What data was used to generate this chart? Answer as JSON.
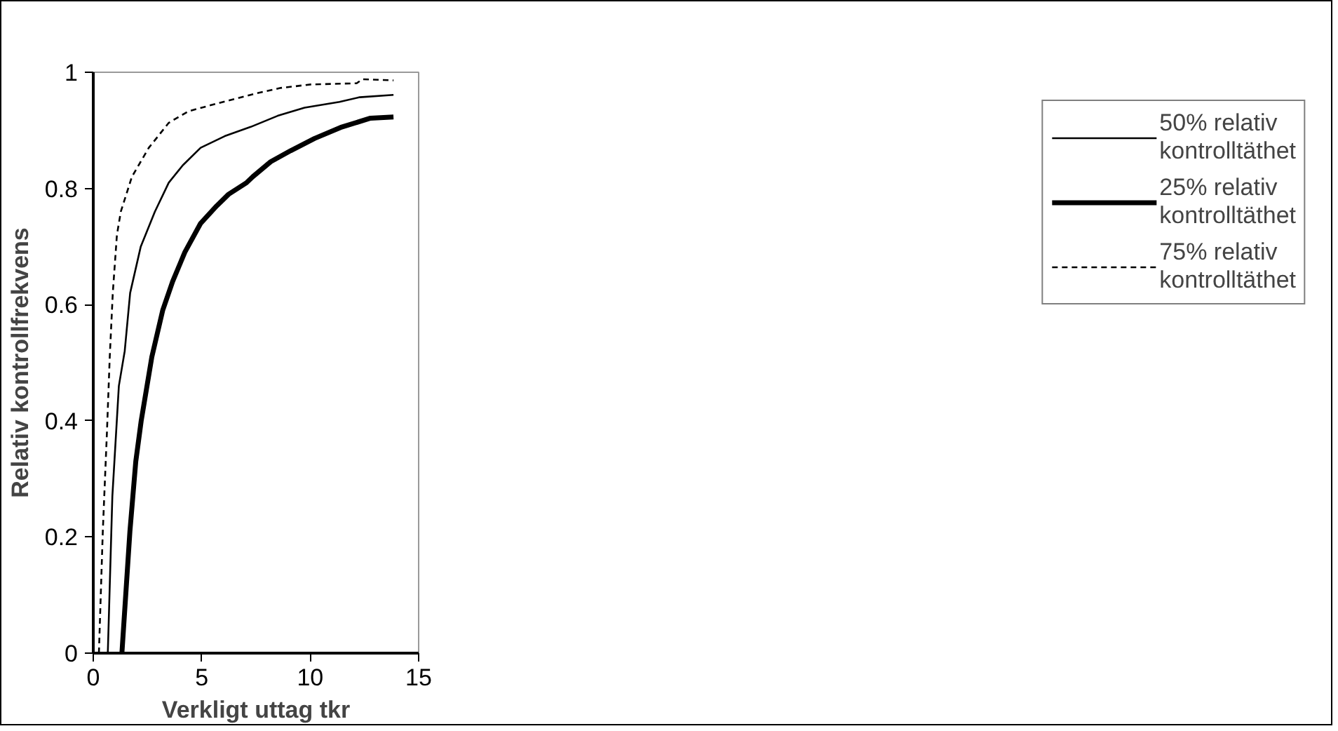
{
  "chart_data": {
    "type": "line",
    "xlabel": "Verkligt uttag tkr",
    "ylabel": "Relativ kontrollfrekvens",
    "xlim": [
      0,
      15
    ],
    "xticks": [
      0,
      5,
      10,
      15
    ],
    "ylim": [
      0,
      1
    ],
    "yticks": [
      0,
      0.2,
      0.4,
      0.6,
      0.8,
      1
    ],
    "grid": false,
    "legend": "right",
    "marker": "none",
    "series": [
      {
        "name": "50% relativ kontrolltäthet",
        "color": "#000000",
        "line_style": "solid",
        "x": [
          0.67,
          0.88,
          1.18,
          1.45,
          1.7,
          2.19,
          2.84,
          3.48,
          4.13,
          4.95,
          6.06,
          7.26,
          8.5,
          9.74,
          11.35,
          12.28,
          13.84
        ],
        "values": [
          0,
          0.27,
          0.46,
          0.52,
          0.62,
          0.7,
          0.76,
          0.81,
          0.84,
          0.87,
          0.89,
          0.906,
          0.925,
          0.939,
          0.949,
          0.957,
          0.961
        ]
      },
      {
        "name": "25% relativ kontrolltäthet",
        "color": "#000000",
        "line_style": "solid",
        "x": [
          1.32,
          1.69,
          1.96,
          2.21,
          2.7,
          3.2,
          3.66,
          4.22,
          4.95,
          5.69,
          6.24,
          7.07,
          7.35,
          8.18,
          9.1,
          10.2,
          11.4,
          12.78,
          13.84
        ],
        "values": [
          0,
          0.21,
          0.33,
          0.4,
          0.51,
          0.59,
          0.64,
          0.69,
          0.74,
          0.77,
          0.79,
          0.81,
          0.82,
          0.846,
          0.865,
          0.886,
          0.905,
          0.921,
          0.923
        ]
      },
      {
        "name": "75% relativ kontrolltäthet",
        "color": "#000000",
        "line_style": "dotted",
        "x": [
          0.26,
          0.44,
          0.63,
          0.76,
          0.9,
          1.09,
          1.27,
          1.78,
          2.56,
          3.48,
          4.4,
          5.78,
          7.44,
          8.64,
          10.02,
          12.14,
          12.41,
          13.84
        ],
        "values": [
          0,
          0.21,
          0.38,
          0.51,
          0.62,
          0.72,
          0.76,
          0.82,
          0.87,
          0.913,
          0.933,
          0.947,
          0.963,
          0.973,
          0.979,
          0.981,
          0.988,
          0.986
        ]
      }
    ]
  }
}
